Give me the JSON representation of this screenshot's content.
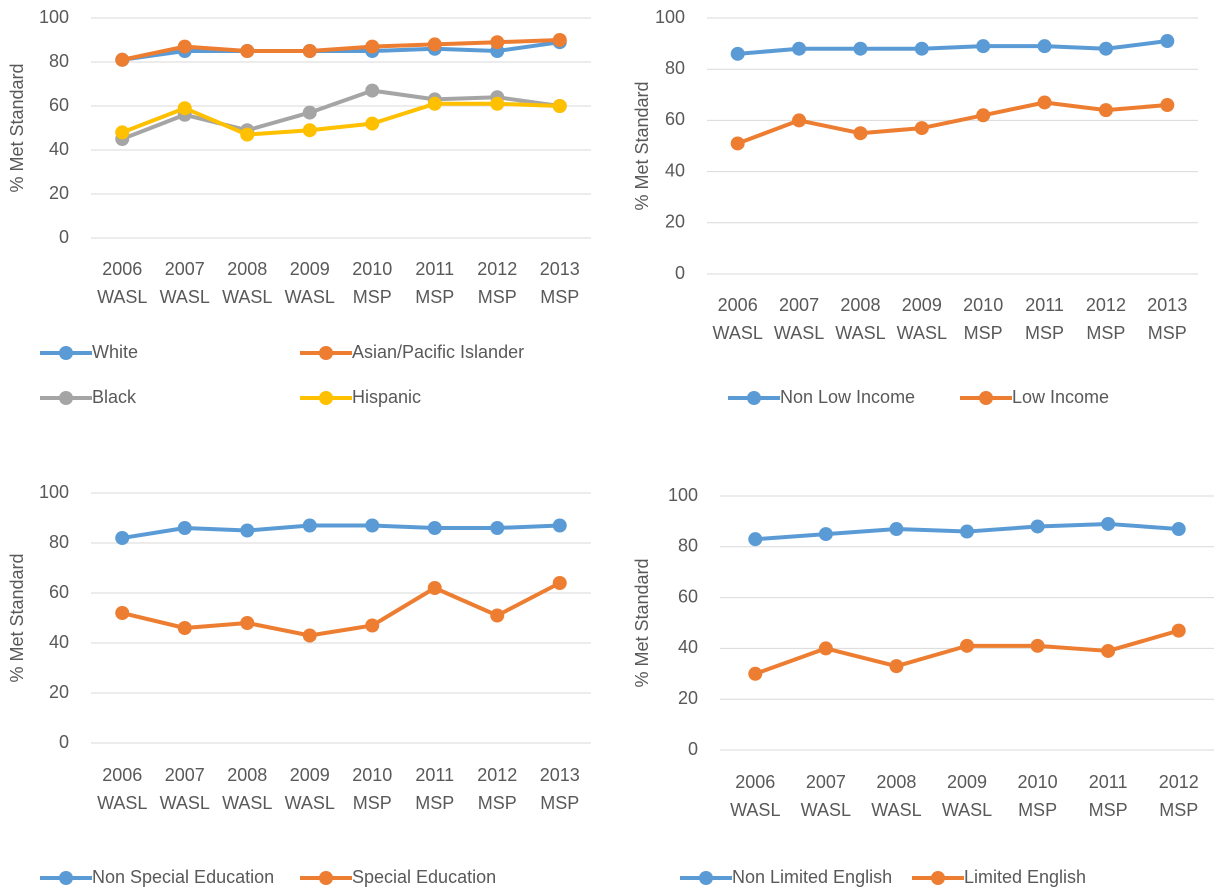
{
  "chart_data": [
    {
      "type": "line",
      "y_label": "% Met Standard",
      "categories": [
        [
          "2006",
          "WASL"
        ],
        [
          "2007",
          "WASL"
        ],
        [
          "2008",
          "WASL"
        ],
        [
          "2009",
          "WASL"
        ],
        [
          "2010",
          "MSP"
        ],
        [
          "2011",
          "MSP"
        ],
        [
          "2012",
          "MSP"
        ],
        [
          "2013",
          "MSP"
        ]
      ],
      "series": [
        {
          "name": "White",
          "color": "#5b9bd5",
          "values": [
            81,
            85,
            85,
            85,
            85,
            86,
            85,
            89
          ]
        },
        {
          "name": "Asian/Pacific Islander",
          "color": "#ed7d31",
          "values": [
            81,
            87,
            85,
            85,
            87,
            88,
            89,
            90
          ]
        },
        {
          "name": "Black",
          "color": "#a5a5a5",
          "values": [
            45,
            56,
            49,
            57,
            67,
            63,
            64,
            60
          ]
        },
        {
          "name": "Hispanic",
          "color": "#ffc000",
          "values": [
            48,
            59,
            47,
            49,
            52,
            61,
            61,
            60
          ]
        }
      ],
      "ylim": [
        0,
        100
      ],
      "yticks": [
        0,
        20,
        40,
        60,
        80,
        100
      ],
      "grid": true
    },
    {
      "type": "line",
      "y_label": "% Met Standard",
      "categories": [
        [
          "2006",
          "WASL"
        ],
        [
          "2007",
          "WASL"
        ],
        [
          "2008",
          "WASL"
        ],
        [
          "2009",
          "WASL"
        ],
        [
          "2010",
          "MSP"
        ],
        [
          "2011",
          "MSP"
        ],
        [
          "2012",
          "MSP"
        ],
        [
          "2013",
          "MSP"
        ]
      ],
      "series": [
        {
          "name": "Non Low Income",
          "color": "#5b9bd5",
          "values": [
            86,
            88,
            88,
            88,
            89,
            89,
            88,
            91
          ]
        },
        {
          "name": "Low Income",
          "color": "#ed7d31",
          "values": [
            51,
            60,
            55,
            57,
            62,
            67,
            64,
            66
          ]
        }
      ],
      "ylim": [
        0,
        100
      ],
      "yticks": [
        0,
        20,
        40,
        60,
        80,
        100
      ],
      "grid": true
    },
    {
      "type": "line",
      "y_label": "% Met Standard",
      "categories": [
        [
          "2006",
          "WASL"
        ],
        [
          "2007",
          "WASL"
        ],
        [
          "2008",
          "WASL"
        ],
        [
          "2009",
          "WASL"
        ],
        [
          "2010",
          "MSP"
        ],
        [
          "2011",
          "MSP"
        ],
        [
          "2012",
          "MSP"
        ],
        [
          "2013",
          "MSP"
        ]
      ],
      "series": [
        {
          "name": "Non Special Education",
          "color": "#5b9bd5",
          "values": [
            82,
            86,
            85,
            87,
            87,
            86,
            86,
            87
          ]
        },
        {
          "name": "Special Education",
          "color": "#ed7d31",
          "values": [
            52,
            46,
            48,
            43,
            47,
            62,
            51,
            64
          ]
        }
      ],
      "ylim": [
        0,
        100
      ],
      "yticks": [
        0,
        20,
        40,
        60,
        80,
        100
      ],
      "grid": true
    },
    {
      "type": "line",
      "y_label": "% Met Standard",
      "categories": [
        [
          "2006",
          "WASL"
        ],
        [
          "2007",
          "WASL"
        ],
        [
          "2008",
          "WASL"
        ],
        [
          "2009",
          "WASL"
        ],
        [
          "2010",
          "MSP"
        ],
        [
          "2011",
          "MSP"
        ],
        [
          "2012",
          "MSP"
        ]
      ],
      "series": [
        {
          "name": "Non Limited English",
          "color": "#5b9bd5",
          "values": [
            83,
            85,
            87,
            86,
            88,
            89,
            87
          ]
        },
        {
          "name": "Limited English",
          "color": "#ed7d31",
          "values": [
            30,
            40,
            33,
            41,
            41,
            39,
            47
          ]
        }
      ],
      "ylim": [
        0,
        100
      ],
      "yticks": [
        0,
        20,
        40,
        60,
        80,
        100
      ],
      "grid": true
    }
  ]
}
